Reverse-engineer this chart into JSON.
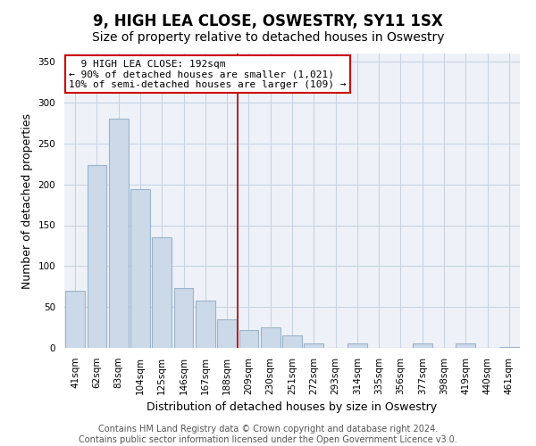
{
  "title": "9, HIGH LEA CLOSE, OSWESTRY, SY11 1SX",
  "subtitle": "Size of property relative to detached houses in Oswestry",
  "xlabel": "Distribution of detached houses by size in Oswestry",
  "ylabel": "Number of detached properties",
  "bar_labels": [
    "41sqm",
    "62sqm",
    "83sqm",
    "104sqm",
    "125sqm",
    "146sqm",
    "167sqm",
    "188sqm",
    "209sqm",
    "230sqm",
    "251sqm",
    "272sqm",
    "293sqm",
    "314sqm",
    "335sqm",
    "356sqm",
    "377sqm",
    "398sqm",
    "419sqm",
    "440sqm",
    "461sqm"
  ],
  "bar_values": [
    70,
    224,
    280,
    194,
    135,
    73,
    58,
    35,
    22,
    25,
    15,
    5,
    0,
    6,
    0,
    0,
    5,
    0,
    6,
    0,
    1
  ],
  "bar_color": "#ccd9e8",
  "bar_edge_color": "#9ab4cc",
  "vline_x_index": 7,
  "vline_color": "#aa0000",
  "annotation_title": "9 HIGH LEA CLOSE: 192sqm",
  "annotation_line1": "← 90% of detached houses are smaller (1,021)",
  "annotation_line2": "10% of semi-detached houses are larger (109) →",
  "annotation_box_color": "#ffffff",
  "annotation_box_edge": "#cc0000",
  "ylim": [
    0,
    360
  ],
  "yticks": [
    0,
    50,
    100,
    150,
    200,
    250,
    300,
    350
  ],
  "footer_line1": "Contains HM Land Registry data © Crown copyright and database right 2024.",
  "footer_line2": "Contains public sector information licensed under the Open Government Licence v3.0.",
  "title_fontsize": 12,
  "subtitle_fontsize": 10,
  "axis_label_fontsize": 9,
  "tick_fontsize": 7.5,
  "annotation_fontsize": 8,
  "footer_fontsize": 7,
  "bg_color": "#ffffff",
  "plot_bg_color": "#eef2f8",
  "grid_color": "#c8d4e4"
}
